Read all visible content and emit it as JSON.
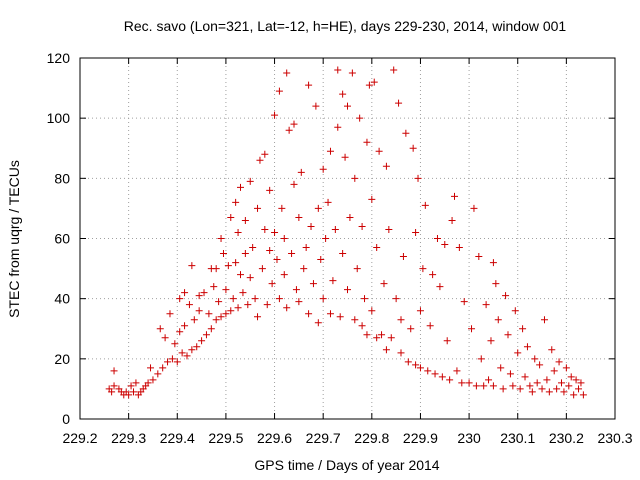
{
  "chart_data": {
    "type": "scatter",
    "title": "Rec. savo (Lon=321, Lat=-12, h=HE), days 229-230, 2014, window 001",
    "xlabel": "GPS time / Days of year 2014",
    "ylabel": "STEC from uqrg / TECUs",
    "xlim": [
      229.2,
      230.3
    ],
    "ylim": [
      0,
      120
    ],
    "xticks": [
      229.2,
      229.3,
      229.4,
      229.5,
      229.6,
      229.7,
      229.8,
      229.9,
      230,
      230.1,
      230.2,
      230.3
    ],
    "xtick_labels": [
      "229.2",
      "229.3",
      "229.4",
      "229.5",
      "229.6",
      "229.7",
      "229.8",
      "229.9",
      "230",
      "230.1",
      "230.2",
      "230.3"
    ],
    "yticks": [
      0,
      20,
      40,
      60,
      80,
      100,
      120
    ],
    "ytick_labels": [
      "0",
      "20",
      "40",
      "60",
      "80",
      "100",
      "120"
    ],
    "grid": true,
    "marker": "+",
    "marker_color": "#cc0000",
    "series": [
      {
        "name": "STEC",
        "points": [
          [
            229.26,
            10
          ],
          [
            229.265,
            9
          ],
          [
            229.27,
            11
          ],
          [
            229.27,
            16
          ],
          [
            229.28,
            10
          ],
          [
            229.285,
            9
          ],
          [
            229.29,
            8
          ],
          [
            229.295,
            9
          ],
          [
            229.3,
            8
          ],
          [
            229.305,
            11
          ],
          [
            229.31,
            9
          ],
          [
            229.315,
            12
          ],
          [
            229.32,
            8
          ],
          [
            229.325,
            9
          ],
          [
            229.33,
            10
          ],
          [
            229.335,
            11
          ],
          [
            229.34,
            12
          ],
          [
            229.345,
            17
          ],
          [
            229.35,
            13
          ],
          [
            229.36,
            15
          ],
          [
            229.365,
            30
          ],
          [
            229.37,
            17
          ],
          [
            229.375,
            27
          ],
          [
            229.38,
            19
          ],
          [
            229.385,
            35
          ],
          [
            229.39,
            20
          ],
          [
            229.395,
            25
          ],
          [
            229.4,
            19
          ],
          [
            229.405,
            40
          ],
          [
            229.405,
            29
          ],
          [
            229.41,
            22
          ],
          [
            229.415,
            42
          ],
          [
            229.415,
            31
          ],
          [
            229.42,
            21
          ],
          [
            229.425,
            38
          ],
          [
            229.43,
            23
          ],
          [
            229.43,
            51
          ],
          [
            229.435,
            33
          ],
          [
            229.44,
            24
          ],
          [
            229.445,
            41
          ],
          [
            229.445,
            36
          ],
          [
            229.45,
            26
          ],
          [
            229.455,
            42
          ],
          [
            229.46,
            28
          ],
          [
            229.465,
            35
          ],
          [
            229.47,
            30
          ],
          [
            229.47,
            50
          ],
          [
            229.475,
            44
          ],
          [
            229.48,
            33
          ],
          [
            229.48,
            50
          ],
          [
            229.485,
            39
          ],
          [
            229.49,
            34
          ],
          [
            229.49,
            60
          ],
          [
            229.495,
            55
          ],
          [
            229.5,
            35
          ],
          [
            229.5,
            43
          ],
          [
            229.505,
            51
          ],
          [
            229.51,
            36
          ],
          [
            229.51,
            67
          ],
          [
            229.515,
            40
          ],
          [
            229.52,
            52
          ],
          [
            229.52,
            72
          ],
          [
            229.525,
            37
          ],
          [
            229.525,
            62
          ],
          [
            229.53,
            48
          ],
          [
            229.53,
            77
          ],
          [
            229.535,
            42
          ],
          [
            229.54,
            55
          ],
          [
            229.54,
            66
          ],
          [
            229.545,
            38
          ],
          [
            229.55,
            79
          ],
          [
            229.55,
            47
          ],
          [
            229.555,
            57
          ],
          [
            229.56,
            40
          ],
          [
            229.565,
            34
          ],
          [
            229.565,
            70
          ],
          [
            229.57,
            86
          ],
          [
            229.575,
            50
          ],
          [
            229.58,
            63
          ],
          [
            229.58,
            88
          ],
          [
            229.585,
            38
          ],
          [
            229.59,
            76
          ],
          [
            229.59,
            56
          ],
          [
            229.595,
            45
          ],
          [
            229.6,
            101
          ],
          [
            229.6,
            62
          ],
          [
            229.605,
            53
          ],
          [
            229.61,
            40
          ],
          [
            229.61,
            109
          ],
          [
            229.615,
            70
          ],
          [
            229.62,
            48
          ],
          [
            229.62,
            60
          ],
          [
            229.625,
            115
          ],
          [
            229.625,
            37
          ],
          [
            229.63,
            96
          ],
          [
            229.635,
            55
          ],
          [
            229.64,
            98
          ],
          [
            229.64,
            78
          ],
          [
            229.645,
            43
          ],
          [
            229.65,
            67
          ],
          [
            229.65,
            39
          ],
          [
            229.655,
            82
          ],
          [
            229.66,
            50
          ],
          [
            229.665,
            57
          ],
          [
            229.67,
            111
          ],
          [
            229.67,
            35
          ],
          [
            229.675,
            64
          ],
          [
            229.68,
            45
          ],
          [
            229.685,
            104
          ],
          [
            229.69,
            70
          ],
          [
            229.69,
            32
          ],
          [
            229.695,
            53
          ],
          [
            229.7,
            83
          ],
          [
            229.7,
            40
          ],
          [
            229.705,
            60
          ],
          [
            229.71,
            72
          ],
          [
            229.715,
            89
          ],
          [
            229.715,
            35
          ],
          [
            229.72,
            46
          ],
          [
            229.725,
            63
          ],
          [
            229.73,
            116
          ],
          [
            229.73,
            97
          ],
          [
            229.735,
            34
          ],
          [
            229.74,
            108
          ],
          [
            229.74,
            55
          ],
          [
            229.745,
            87
          ],
          [
            229.75,
            104
          ],
          [
            229.75,
            43
          ],
          [
            229.755,
            67
          ],
          [
            229.76,
            115
          ],
          [
            229.765,
            33
          ],
          [
            229.765,
            80
          ],
          [
            229.77,
            50
          ],
          [
            229.775,
            100
          ],
          [
            229.78,
            31
          ],
          [
            229.78,
            64
          ],
          [
            229.785,
            40
          ],
          [
            229.79,
            92
          ],
          [
            229.79,
            28
          ],
          [
            229.795,
            111
          ],
          [
            229.8,
            73
          ],
          [
            229.8,
            36
          ],
          [
            229.805,
            112
          ],
          [
            229.81,
            27
          ],
          [
            229.81,
            57
          ],
          [
            229.815,
            89
          ],
          [
            229.82,
            28
          ],
          [
            229.825,
            45
          ],
          [
            229.83,
            23
          ],
          [
            229.83,
            84
          ],
          [
            229.835,
            63
          ],
          [
            229.84,
            27
          ],
          [
            229.845,
            116
          ],
          [
            229.85,
            40
          ],
          [
            229.855,
            105
          ],
          [
            229.86,
            22
          ],
          [
            229.86,
            33
          ],
          [
            229.865,
            54
          ],
          [
            229.87,
            95
          ],
          [
            229.875,
            19
          ],
          [
            229.88,
            30
          ],
          [
            229.885,
            90
          ],
          [
            229.89,
            18
          ],
          [
            229.89,
            62
          ],
          [
            229.895,
            80
          ],
          [
            229.9,
            17
          ],
          [
            229.9,
            36
          ],
          [
            229.905,
            50
          ],
          [
            229.91,
            71
          ],
          [
            229.915,
            16
          ],
          [
            229.92,
            31
          ],
          [
            229.925,
            48
          ],
          [
            229.93,
            15
          ],
          [
            229.935,
            60
          ],
          [
            229.94,
            44
          ],
          [
            229.945,
            14
          ],
          [
            229.95,
            58
          ],
          [
            229.955,
            26
          ],
          [
            229.96,
            13
          ],
          [
            229.965,
            66
          ],
          [
            229.97,
            74
          ],
          [
            229.975,
            16
          ],
          [
            229.98,
            57
          ],
          [
            229.985,
            12
          ],
          [
            229.99,
            39
          ],
          [
            230.0,
            12
          ],
          [
            230.005,
            30
          ],
          [
            230.01,
            70
          ],
          [
            230.015,
            11
          ],
          [
            230.02,
            54
          ],
          [
            230.025,
            20
          ],
          [
            230.03,
            11
          ],
          [
            230.035,
            38
          ],
          [
            230.04,
            13
          ],
          [
            230.045,
            26
          ],
          [
            230.05,
            52
          ],
          [
            230.05,
            11
          ],
          [
            230.055,
            45
          ],
          [
            230.06,
            33
          ],
          [
            230.065,
            17
          ],
          [
            230.07,
            10
          ],
          [
            230.075,
            41
          ],
          [
            230.08,
            28
          ],
          [
            230.085,
            15
          ],
          [
            230.09,
            11
          ],
          [
            230.095,
            36
          ],
          [
            230.1,
            22
          ],
          [
            230.105,
            10
          ],
          [
            230.11,
            30
          ],
          [
            230.115,
            14
          ],
          [
            230.12,
            24
          ],
          [
            230.125,
            11
          ],
          [
            230.13,
            9
          ],
          [
            230.135,
            20
          ],
          [
            230.14,
            12
          ],
          [
            230.145,
            18
          ],
          [
            230.15,
            10
          ],
          [
            230.155,
            33
          ],
          [
            230.16,
            13
          ],
          [
            230.165,
            9
          ],
          [
            230.17,
            23
          ],
          [
            230.175,
            16
          ],
          [
            230.18,
            10
          ],
          [
            230.185,
            19
          ],
          [
            230.19,
            12
          ],
          [
            230.195,
            9
          ],
          [
            230.2,
            17
          ],
          [
            230.205,
            11
          ],
          [
            230.21,
            14
          ],
          [
            230.215,
            8
          ],
          [
            230.22,
            13
          ],
          [
            230.225,
            10
          ],
          [
            230.23,
            12
          ],
          [
            230.235,
            8
          ]
        ]
      }
    ]
  }
}
